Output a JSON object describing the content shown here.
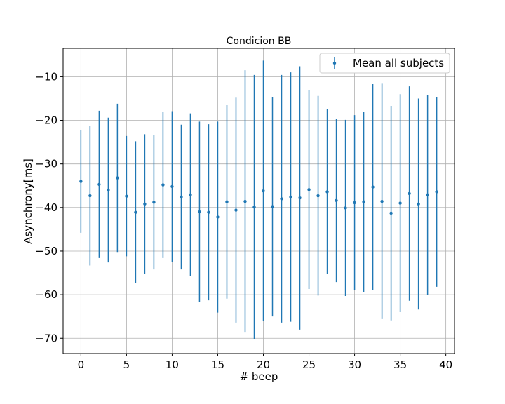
{
  "chart_data": {
    "type": "errorbar",
    "title": "Condicion BB",
    "xlabel": "# beep",
    "ylabel": "Asynchrony[ms]",
    "xlim": [
      -1.95,
      40.95
    ],
    "ylim": [
      -73.5,
      -3.5
    ],
    "xticks": [
      0,
      5,
      10,
      15,
      20,
      25,
      30,
      35,
      40
    ],
    "xtick_labels": [
      "0",
      "5",
      "10",
      "15",
      "20",
      "25",
      "30",
      "35",
      "40"
    ],
    "yticks": [
      -70,
      -60,
      -50,
      -40,
      -30,
      -20,
      -10
    ],
    "ytick_labels": [
      "−70",
      "−60",
      "−50",
      "−40",
      "−30",
      "−20",
      "−10"
    ],
    "grid": true,
    "legend_position": "top-right",
    "series": [
      {
        "name": "Mean all subjects",
        "color": "#1f77b4",
        "x": [
          0,
          1,
          2,
          3,
          4,
          5,
          6,
          7,
          8,
          9,
          10,
          11,
          12,
          13,
          14,
          15,
          16,
          17,
          18,
          19,
          20,
          21,
          22,
          23,
          24,
          25,
          26,
          27,
          28,
          29,
          30,
          31,
          32,
          33,
          34,
          35,
          36,
          37,
          38,
          39
        ],
        "y": [
          -34,
          -37.3,
          -34.7,
          -36,
          -33.2,
          -37.4,
          -41.1,
          -39.2,
          -38.8,
          -34.8,
          -35.2,
          -37.6,
          -37.1,
          -41,
          -41.1,
          -42.2,
          -38.7,
          -40.6,
          -38.6,
          -39.9,
          -36.2,
          -39.8,
          -38,
          -37.6,
          -37.8,
          -35.9,
          -37.3,
          -36.4,
          -38.4,
          -40.1,
          -38.9,
          -38.7,
          -35.3,
          -38.6,
          -41.3,
          -39,
          -36.8,
          -39.2,
          -37.1,
          -36.4
        ],
        "yerr": [
          11.8,
          16,
          16.9,
          16.6,
          17,
          13.8,
          16.3,
          16,
          15.4,
          16.8,
          17.3,
          16.6,
          18.7,
          20.7,
          20.2,
          21.9,
          22.2,
          25.8,
          30.1,
          30.3,
          29.9,
          25.2,
          28.4,
          28.6,
          30.2,
          22.8,
          22.9,
          18.9,
          18.7,
          20.2,
          20.1,
          20.7,
          23.6,
          27,
          24.6,
          25,
          24.6,
          24.2,
          22.9,
          21.8
        ]
      }
    ]
  }
}
